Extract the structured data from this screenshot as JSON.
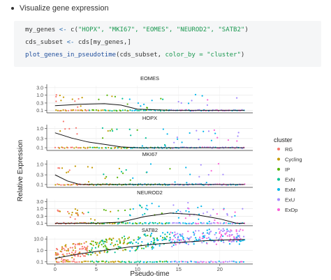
{
  "section": {
    "bullet_text": "Visualize gene expression"
  },
  "code": {
    "line1_var": "my_genes",
    "line1_assign": " <- ",
    "line1_call": "c(",
    "line1_args": "\"HOPX\", \"MKI67\", \"EOMES\", \"NEUROD2\", \"SATB2\"",
    "line1_close": ")",
    "line2_var": "cds_subset",
    "line2_assign": " <- ",
    "line2_rest": "cds[my_genes,]",
    "line3_fn": "plot_genes_in_pseudotime",
    "line3_open": "(cds_subset, ",
    "line3_arg": "color_by = \"cluster\"",
    "line3_close": ")"
  },
  "chart_data": {
    "type": "scatter",
    "xlabel": "Pseudo-time",
    "ylabel": "Relative Expression",
    "x_ticks": [
      "0",
      "5",
      "10",
      "15",
      "20"
    ],
    "xlim": [
      -1,
      24
    ],
    "log_y": true,
    "legend_title": "cluster",
    "legend_position": "right",
    "legend": [
      {
        "name": "RG",
        "color": "#f8766d"
      },
      {
        "name": "Cycling",
        "color": "#c49a00"
      },
      {
        "name": "IP",
        "color": "#53b400"
      },
      {
        "name": "ExN",
        "color": "#00c094"
      },
      {
        "name": "ExM",
        "color": "#00b6eb"
      },
      {
        "name": "ExU",
        "color": "#a58aff"
      },
      {
        "name": "ExDp",
        "color": "#fb61d7"
      }
    ],
    "panels": [
      {
        "gene": "EOMES",
        "y_ticks": [
          "3.0",
          "1.0",
          "0.3",
          "0.1"
        ],
        "y_tick_values": [
          3.0,
          1.0,
          0.3,
          0.1
        ],
        "trend": [
          [
            0,
            0.2
          ],
          [
            3,
            0.25
          ],
          [
            6,
            0.27
          ],
          [
            8,
            0.22
          ],
          [
            10,
            0.12
          ],
          [
            14,
            0.1
          ],
          [
            23,
            0.1
          ]
        ]
      },
      {
        "gene": "HOPX",
        "y_ticks": [
          "1.0",
          "0.3",
          "0.1"
        ],
        "y_tick_values": [
          1.0,
          0.3,
          0.1
        ],
        "trend": [
          [
            0,
            0.6
          ],
          [
            2,
            0.32
          ],
          [
            4,
            0.2
          ],
          [
            6,
            0.15
          ],
          [
            8,
            0.11
          ],
          [
            10,
            0.1
          ],
          [
            23,
            0.1
          ]
        ]
      },
      {
        "gene": "MKI67",
        "y_ticks": [
          "1.0",
          "0.3",
          "0.1"
        ],
        "y_tick_values": [
          1.0,
          0.3,
          0.1
        ],
        "trend": [
          [
            0,
            0.3
          ],
          [
            1.5,
            0.15
          ],
          [
            3,
            0.1
          ],
          [
            23,
            0.1
          ]
        ]
      },
      {
        "gene": "NEUROD2",
        "y_ticks": [
          "3.0",
          "1.0",
          "0.3",
          "0.1"
        ],
        "y_tick_values": [
          3.0,
          1.0,
          0.3,
          0.1
        ],
        "trend": [
          [
            0,
            0.1
          ],
          [
            5,
            0.1
          ],
          [
            8,
            0.12
          ],
          [
            11,
            0.3
          ],
          [
            14,
            0.5
          ],
          [
            17,
            0.4
          ],
          [
            20,
            0.2
          ],
          [
            22,
            0.1
          ],
          [
            23,
            0.1
          ]
        ]
      },
      {
        "gene": "SATB2",
        "y_ticks": [
          "10.0",
          "1.0",
          "0.1"
        ],
        "y_tick_values": [
          10.0,
          1.0,
          0.1
        ],
        "trend": [
          [
            0,
            0.2
          ],
          [
            3,
            0.5
          ],
          [
            6,
            1.0
          ],
          [
            9,
            2.0
          ],
          [
            12,
            3.5
          ],
          [
            15,
            5.0
          ],
          [
            18,
            7.0
          ],
          [
            20,
            8.0
          ],
          [
            23,
            9.0
          ]
        ]
      }
    ]
  }
}
